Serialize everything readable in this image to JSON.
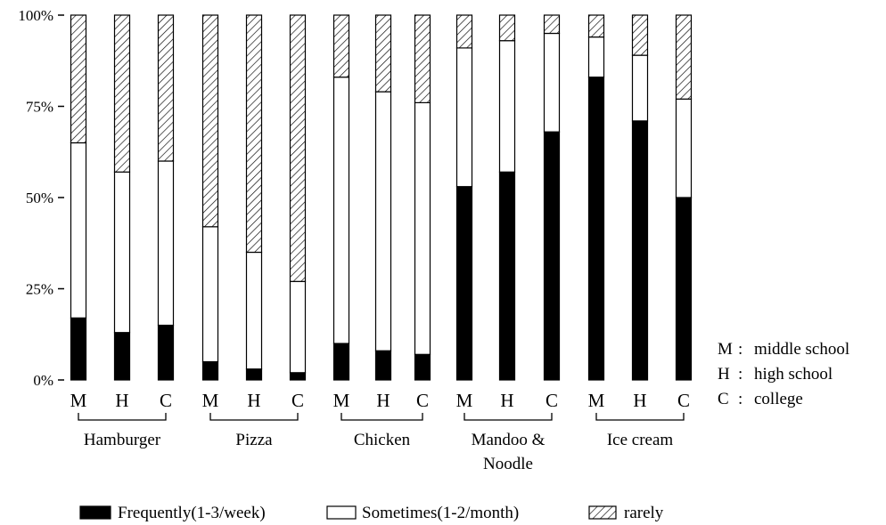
{
  "chart_data": {
    "type": "bar",
    "stacked": true,
    "y_tick_labels": [
      "0%",
      "25%",
      "50%",
      "75%",
      "100%"
    ],
    "ylim": [
      0,
      100
    ],
    "categories": [
      "M",
      "H",
      "C",
      "M",
      "H",
      "C",
      "M",
      "H",
      "C",
      "M",
      "H",
      "C",
      "M",
      "H",
      "C"
    ],
    "groups": [
      {
        "label": "Hamburger"
      },
      {
        "label": "Pizza"
      },
      {
        "label": "Chicken"
      },
      {
        "label": "Mandoo &\nNoodle"
      },
      {
        "label": "Ice cream"
      }
    ],
    "series": [
      {
        "name": "Frequently(1-3/week)",
        "fill": "solid-black",
        "values": [
          17,
          13,
          15,
          5,
          3,
          2,
          10,
          8,
          7,
          53,
          57,
          68,
          83,
          71,
          50
        ]
      },
      {
        "name": "Sometimes(1-2/month)",
        "fill": "white",
        "values": [
          48,
          44,
          45,
          37,
          32,
          25,
          73,
          71,
          69,
          38,
          36,
          27,
          11,
          18,
          27
        ]
      },
      {
        "name": "rarely",
        "fill": "diagonal-hatch",
        "values": [
          35,
          43,
          40,
          58,
          65,
          73,
          17,
          21,
          24,
          9,
          7,
          5,
          6,
          11,
          23
        ]
      }
    ],
    "key": [
      {
        "letter": "M",
        "meaning": "middle school"
      },
      {
        "letter": "H",
        "meaning": "high school"
      },
      {
        "letter": "C",
        "meaning": "college"
      }
    ],
    "legend_position": "bottom",
    "grid": false,
    "colors": {
      "frequently": "#000000",
      "sometimes": "#ffffff",
      "rarely_hatch": "#000000"
    }
  }
}
